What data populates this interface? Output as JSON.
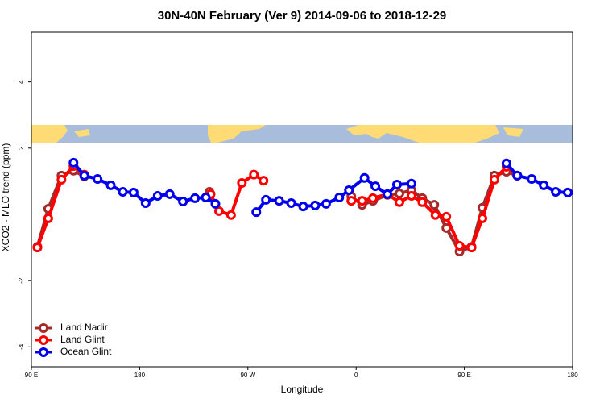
{
  "chart_data": {
    "type": "line",
    "title": "30N-40N February (Ver 9)   2014-09-06 to 2018-12-29",
    "x_label": "Longitude",
    "y_label": "XCO2 - MLO trend (ppm)",
    "xlim": [
      90,
      540
    ],
    "xticks": [
      {
        "value": 90,
        "label": "90 E"
      },
      180,
      {
        "value": 270,
        "label": "90 W"
      },
      {
        "value": 360,
        "label": "0"
      },
      {
        "value": 450,
        "label": "90 E"
      },
      {
        "value": 540,
        "label": "180"
      }
    ],
    "ylim": [
      -4.6,
      5.5
    ],
    "yticks": [
      -4,
      -2,
      2,
      4
    ],
    "legend": "bottom-left",
    "series": [
      {
        "name": "Land Nadir",
        "color": "#a52a2a",
        "x": [
          95,
          104,
          115,
          125,
          134,
          null,
          238,
          null,
          356,
          365,
          374,
          386,
          396,
          406,
          415,
          425,
          435,
          446,
          456,
          465,
          475,
          485,
          494
        ],
        "values": [
          -0.98,
          0.17,
          1.17,
          1.32,
          1.15,
          null,
          0.68,
          null,
          0.54,
          0.29,
          0.41,
          0.59,
          0.63,
          0.73,
          0.49,
          0.29,
          -0.41,
          -1.12,
          -0.98,
          0.2,
          1.17,
          1.29,
          1.17
        ]
      },
      {
        "name": "Land Glint",
        "color": "#ff0000",
        "x": [
          95,
          104,
          115,
          125,
          134,
          null,
          239,
          246,
          256,
          265,
          275,
          283,
          null,
          356,
          365,
          374,
          386,
          396,
          406,
          415,
          426,
          435,
          446,
          456,
          465,
          475,
          485,
          494
        ],
        "values": [
          -1.0,
          -0.12,
          1.05,
          1.46,
          1.2,
          null,
          0.61,
          0.1,
          -0.02,
          0.95,
          1.2,
          1.02,
          null,
          0.41,
          0.41,
          0.49,
          0.61,
          0.37,
          0.56,
          0.37,
          -0.02,
          -0.07,
          -0.95,
          -1.0,
          -0.12,
          1.05,
          1.44,
          1.17
        ]
      },
      {
        "name": "Ocean Glint",
        "color": "#0000ee",
        "x": [
          125,
          134,
          145,
          156,
          166,
          175,
          185,
          195,
          205,
          216,
          226,
          235,
          243,
          null,
          277,
          285,
          296,
          306,
          316,
          326,
          335,
          346,
          354,
          367,
          376,
          386,
          394,
          406,
          null,
          485,
          494,
          506,
          516,
          526,
          536
        ],
        "values": [
          1.56,
          1.17,
          1.07,
          0.88,
          0.68,
          0.66,
          0.34,
          0.56,
          0.61,
          0.39,
          0.49,
          0.51,
          0.32,
          null,
          0.07,
          0.44,
          0.41,
          0.34,
          0.24,
          0.27,
          0.32,
          0.51,
          0.73,
          1.1,
          0.85,
          0.61,
          0.9,
          0.93,
          null,
          1.54,
          1.17,
          1.07,
          0.88,
          0.68,
          0.66
        ]
      }
    ]
  }
}
